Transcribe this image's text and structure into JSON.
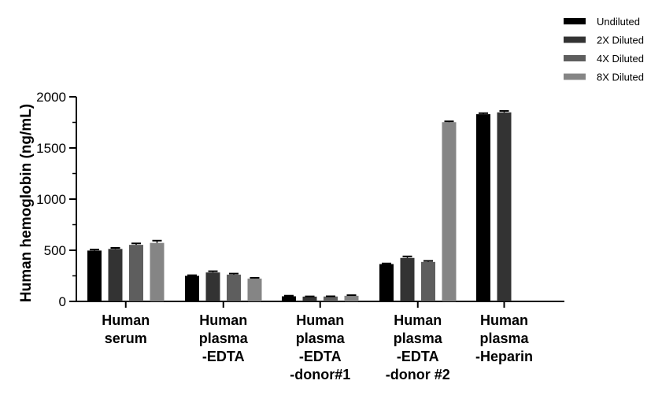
{
  "chart_data": {
    "type": "bar",
    "title": "",
    "ylabel": "Human hemoglobin (ng/mL)",
    "xlabel": "",
    "ylim": [
      0,
      2000
    ],
    "yticks": [
      "0",
      "500",
      "1000",
      "1500",
      "2000"
    ],
    "ytick_values": [
      0,
      500,
      1000,
      1500,
      2000
    ],
    "minor_tick_step": 250,
    "grid": false,
    "legend_position": "top-right",
    "categories": [
      [
        "Human",
        "serum"
      ],
      [
        "Human",
        "plasma",
        "-EDTA"
      ],
      [
        "Human",
        "plasma",
        "-EDTA",
        "-donor#1"
      ],
      [
        "Human",
        "plasma",
        "-EDTA",
        "-donor #2"
      ],
      [
        "Human",
        "plasma",
        "-Heparin"
      ]
    ],
    "series": [
      {
        "name": "Undiluted",
        "color": "#000000",
        "values": [
          497,
          250,
          50,
          365,
          1830
        ],
        "errors": [
          10,
          6,
          6,
          6,
          10
        ]
      },
      {
        "name": "2X Diluted",
        "color": "#333333",
        "values": [
          513,
          283,
          47,
          425,
          1848
        ],
        "errors": [
          10,
          12,
          2,
          15,
          14
        ]
      },
      {
        "name": "4X Diluted",
        "color": "#5e5e5e",
        "values": [
          553,
          262,
          48,
          386,
          null
        ],
        "errors": [
          14,
          10,
          2,
          10,
          0
        ]
      },
      {
        "name": "8X Diluted",
        "color": "#858585",
        "values": [
          572,
          223,
          55,
          1752,
          null
        ],
        "errors": [
          22,
          8,
          6,
          8,
          0
        ]
      }
    ]
  }
}
